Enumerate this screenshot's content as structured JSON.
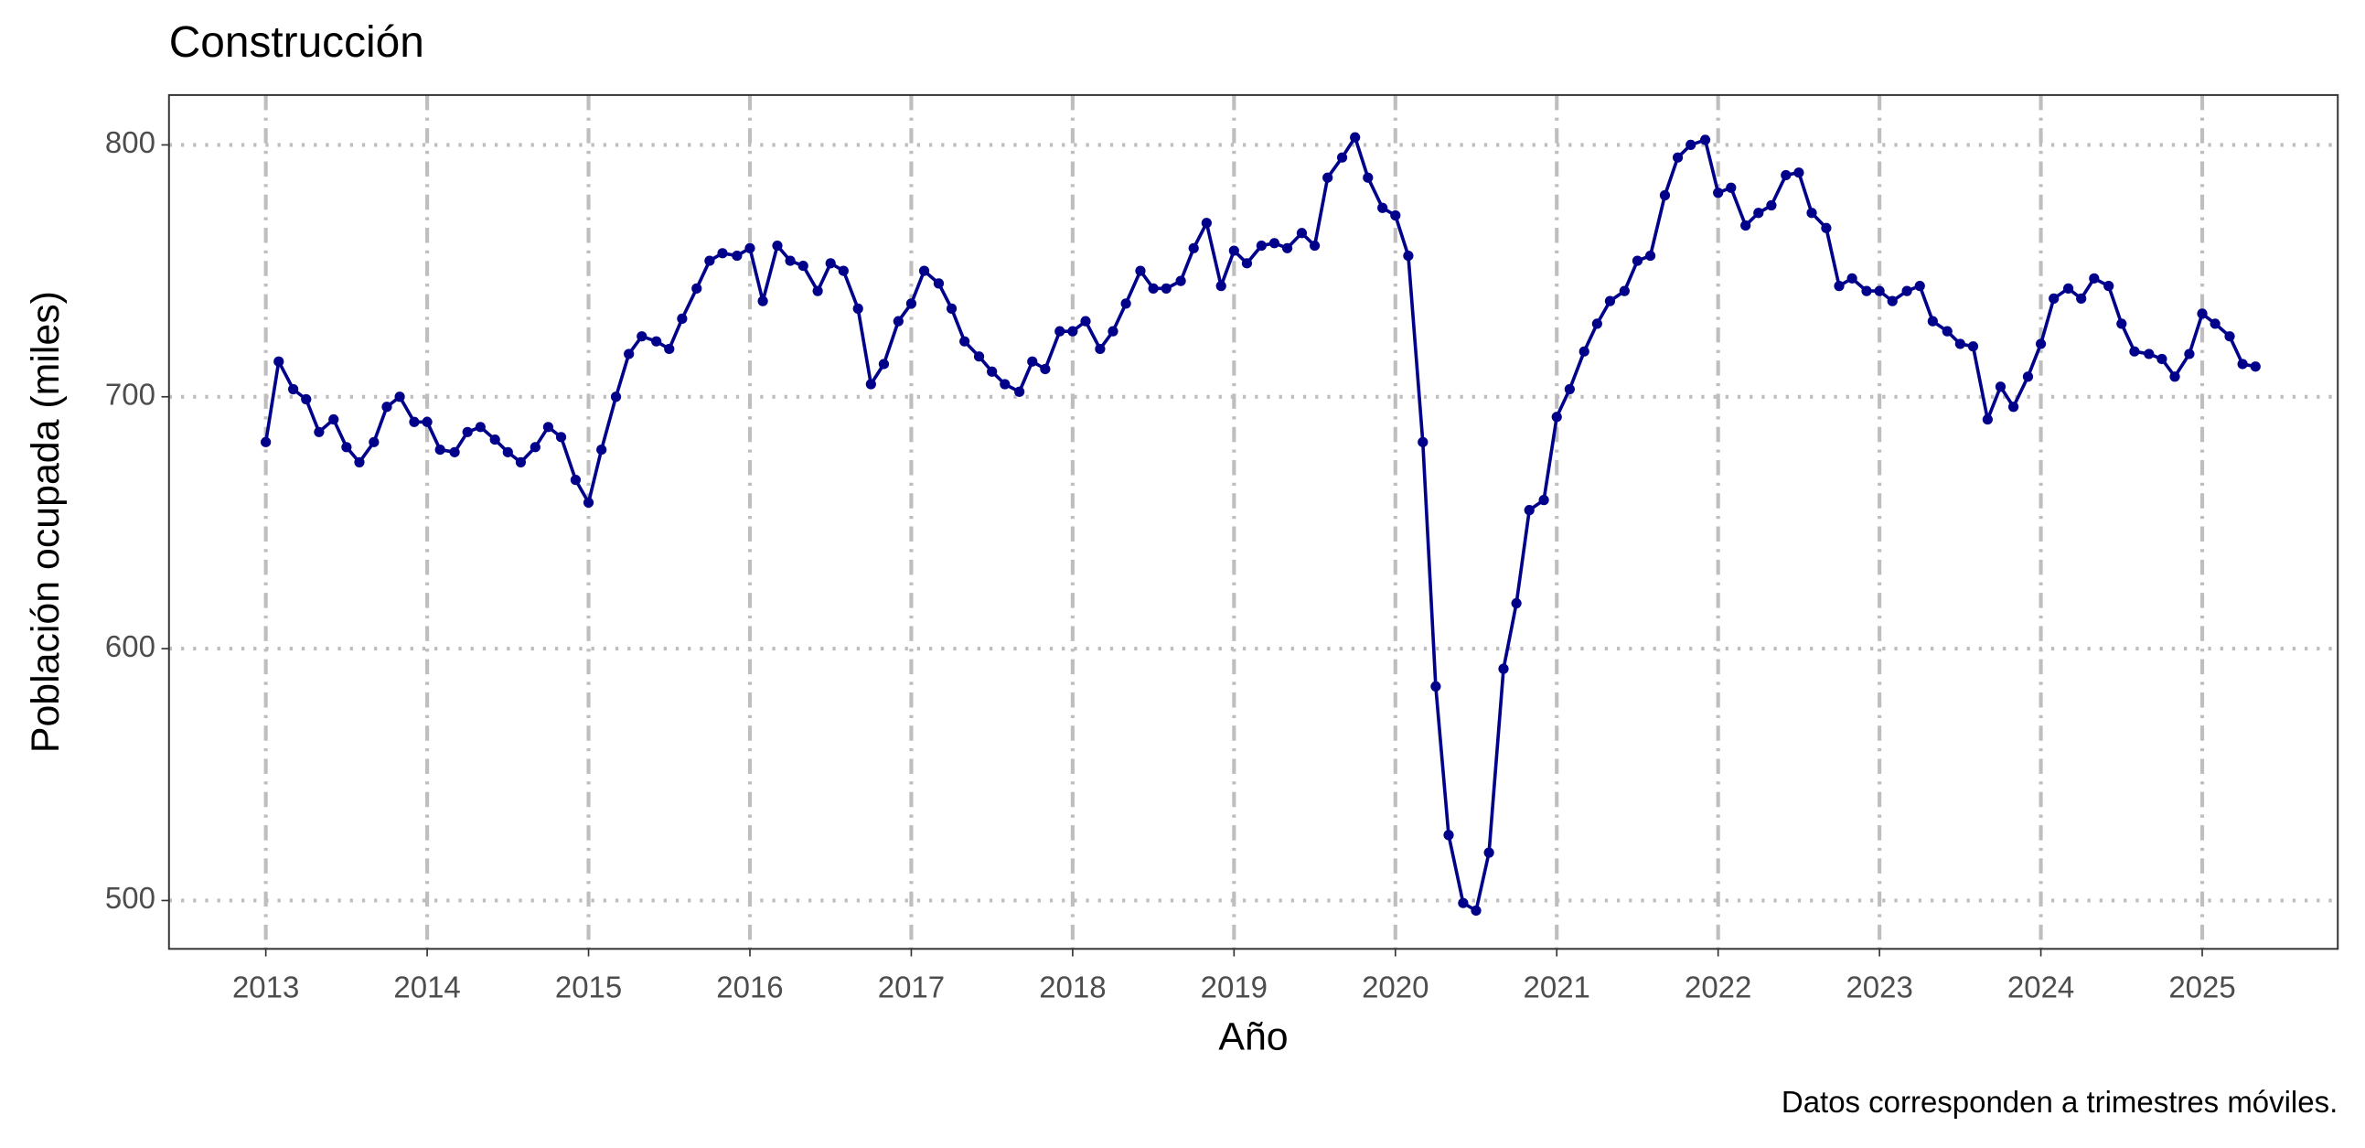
{
  "chart_data": {
    "type": "line",
    "title": "Construcción",
    "x_label": "Año",
    "y_label": "Población ocupada (miles)",
    "caption": "Datos corresponden a trimestres móviles.",
    "color": "#00008b",
    "grid": true,
    "xlim": [
      2012.4,
      2025.84
    ],
    "xticks": [
      2013,
      2014,
      2015,
      2016,
      2017,
      2018,
      2019,
      2020,
      2021,
      2022,
      2023,
      2024,
      2025
    ],
    "ylim": [
      480.8,
      819.8
    ],
    "yticks": [
      500,
      600,
      700,
      800
    ],
    "x": [
      2013.0,
      2013.08,
      2013.17,
      2013.25,
      2013.33,
      2013.42,
      2013.5,
      2013.58,
      2013.67,
      2013.75,
      2013.83,
      2013.92,
      2014.0,
      2014.08,
      2014.17,
      2014.25,
      2014.33,
      2014.42,
      2014.5,
      2014.58,
      2014.67,
      2014.75,
      2014.83,
      2014.92,
      2015.0,
      2015.08,
      2015.17,
      2015.25,
      2015.33,
      2015.42,
      2015.5,
      2015.58,
      2015.67,
      2015.75,
      2015.83,
      2015.92,
      2016.0,
      2016.08,
      2016.17,
      2016.25,
      2016.33,
      2016.42,
      2016.5,
      2016.58,
      2016.67,
      2016.75,
      2016.83,
      2016.92,
      2017.0,
      2017.08,
      2017.17,
      2017.25,
      2017.33,
      2017.42,
      2017.5,
      2017.58,
      2017.67,
      2017.75,
      2017.83,
      2017.92,
      2018.0,
      2018.08,
      2018.17,
      2018.25,
      2018.33,
      2018.42,
      2018.5,
      2018.58,
      2018.67,
      2018.75,
      2018.83,
      2018.92,
      2019.0,
      2019.08,
      2019.17,
      2019.25,
      2019.33,
      2019.42,
      2019.5,
      2019.58,
      2019.67,
      2019.75,
      2019.83,
      2019.92,
      2020.0,
      2020.08,
      2020.17,
      2020.25,
      2020.33,
      2020.42,
      2020.5,
      2020.58,
      2020.67,
      2020.75,
      2020.83,
      2020.92,
      2021.0,
      2021.08,
      2021.17,
      2021.25,
      2021.33,
      2021.42,
      2021.5,
      2021.58,
      2021.67,
      2021.75,
      2021.83,
      2021.92,
      2022.0,
      2022.08,
      2022.17,
      2022.25,
      2022.33,
      2022.42,
      2022.5,
      2022.58,
      2022.67,
      2022.75,
      2022.83,
      2022.92,
      2023.0,
      2023.08,
      2023.17,
      2023.25,
      2023.33,
      2023.42,
      2023.5,
      2023.58,
      2023.67,
      2023.75,
      2023.83,
      2023.92,
      2024.0,
      2024.08,
      2024.17,
      2024.25,
      2024.33,
      2024.42,
      2024.5,
      2024.58,
      2024.67,
      2024.75,
      2024.83,
      2024.92,
      2025.0,
      2025.08,
      2025.17,
      2025.25,
      2025.33
    ],
    "values": [
      682,
      714,
      703,
      699,
      686,
      691,
      680,
      674,
      682,
      696,
      700,
      690,
      690,
      679,
      678,
      686,
      688,
      683,
      678,
      674,
      680,
      688,
      684,
      667,
      658,
      679,
      700,
      717,
      724,
      722,
      719,
      731,
      743,
      754,
      757,
      756,
      759,
      738,
      760,
      754,
      752,
      742,
      753,
      750,
      735,
      705,
      713,
      730,
      737,
      750,
      745,
      735,
      722,
      716,
      710,
      705,
      702,
      714,
      711,
      726,
      726,
      730,
      719,
      726,
      737,
      750,
      743,
      743,
      746,
      759,
      769,
      744,
      758,
      753,
      760,
      761,
      759,
      765,
      760,
      787,
      795,
      803,
      787,
      775,
      772,
      756,
      682,
      585,
      526,
      499,
      496,
      519,
      592,
      618,
      655,
      659,
      692,
      703,
      718,
      729,
      738,
      742,
      754,
      756,
      780,
      795,
      800,
      802,
      781,
      783,
      768,
      773,
      776,
      788,
      789,
      773,
      767,
      744,
      747,
      742,
      742,
      738,
      742,
      744,
      730,
      726,
      721,
      720,
      691,
      704,
      696,
      708,
      721,
      739,
      743,
      739,
      747,
      744,
      729,
      718,
      717,
      715,
      708,
      717,
      733,
      729,
      724,
      713,
      712
    ]
  }
}
